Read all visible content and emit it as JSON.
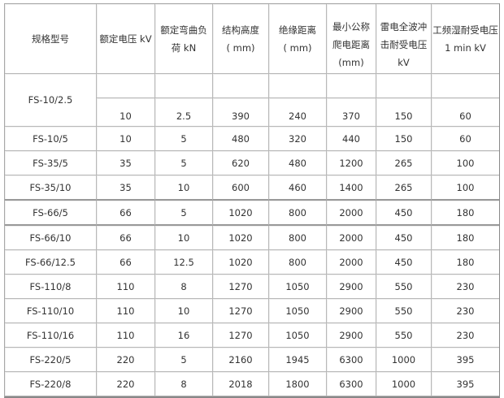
{
  "headers": [
    [
      "规格型号"
    ],
    [
      "额定电压 kV"
    ],
    [
      "额定弯曲负",
      "荷 kN"
    ],
    [
      "结构高度",
      "( mm)"
    ],
    [
      "绝缘距离",
      "( mm)"
    ],
    [
      "最小公称",
      "爬电距离",
      "(mm)"
    ],
    [
      "雷电全波冲",
      "击耐受电压",
      "kV"
    ],
    [
      "工频湿耐受电压",
      "1 min kV"
    ]
  ],
  "first_row": {
    "model": "FS-10/2.5",
    "values": [
      "10",
      "2.5",
      "390",
      "240",
      "370",
      "150",
      "60"
    ]
  },
  "rows": [
    [
      "FS-10/5",
      "10",
      "5",
      "480",
      "320",
      "440",
      "150",
      "60"
    ],
    [
      "FS-35/5",
      "35",
      "5",
      "620",
      "480",
      "1200",
      "265",
      "100"
    ],
    [
      "FS-35/10",
      "35",
      "10",
      "600",
      "460",
      "1400",
      "265",
      "100"
    ],
    [
      "FS-66/5",
      "66",
      "5",
      "1020",
      "800",
      "2000",
      "450",
      "180"
    ],
    [
      "FS-66/10",
      "66",
      "10",
      "1020",
      "800",
      "2000",
      "450",
      "180"
    ],
    [
      "FS-66/12.5",
      "66",
      "12.5",
      "1020",
      "800",
      "2000",
      "450",
      "180"
    ],
    [
      "FS-110/8",
      "110",
      "8",
      "1270",
      "1050",
      "2900",
      "550",
      "230"
    ],
    [
      "FS-110/10",
      "110",
      "10",
      "1270",
      "1050",
      "2900",
      "550",
      "230"
    ],
    [
      "FS-110/16",
      "110",
      "16",
      "1270",
      "1050",
      "2900",
      "550",
      "230"
    ],
    [
      "FS-220/5",
      "220",
      "5",
      "2160",
      "1945",
      "6300",
      "1000",
      "395"
    ],
    [
      "FS-220/8",
      "220",
      "8",
      "2018",
      "1800",
      "6300",
      "1000",
      "395"
    ]
  ]
}
